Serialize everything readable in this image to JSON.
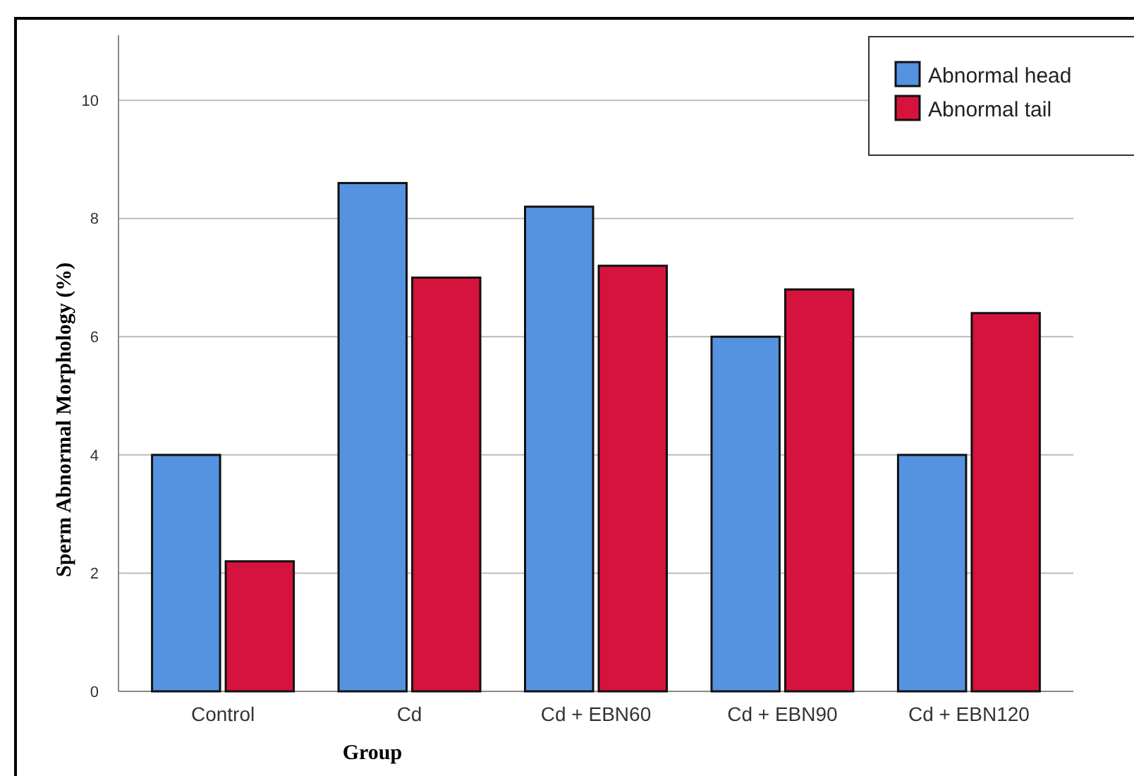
{
  "chart_data": {
    "type": "bar",
    "xlabel": "Group",
    "ylabel": "Sperm Abnormal Morphology (%)",
    "categories": [
      "Control",
      "Cd",
      "Cd + EBN60",
      "Cd + EBN90",
      "Cd + EBN120"
    ],
    "series": [
      {
        "name": "Abnormal head",
        "color": "#5593e0",
        "values": [
          4.0,
          8.6,
          8.2,
          6.0,
          4.0
        ]
      },
      {
        "name": "Abnormal tail",
        "color": "#d5133d",
        "values": [
          2.2,
          7.0,
          7.2,
          6.8,
          6.4
        ]
      }
    ],
    "ylim": [
      0,
      11.1
    ],
    "yticks": [
      0,
      2,
      4,
      6,
      8,
      10
    ],
    "grid": "y",
    "legend": "top right"
  }
}
